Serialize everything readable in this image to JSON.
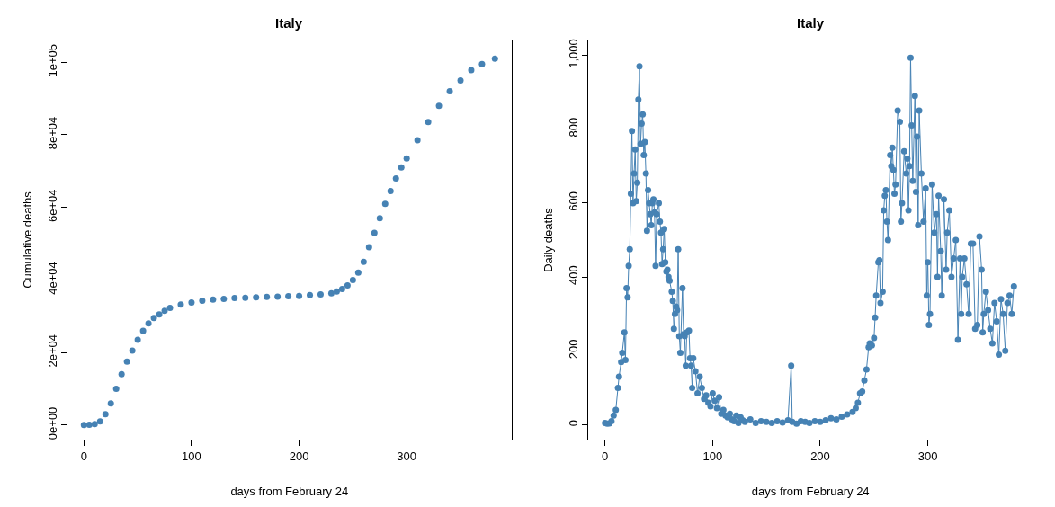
{
  "chart_data": [
    {
      "type": "scatter",
      "title": "Italy",
      "xlabel": "days from February 24",
      "ylabel": "Cumulative deaths",
      "marker": "circle",
      "color": "#4682b4",
      "x": [
        0,
        5,
        10,
        15,
        20,
        25,
        30,
        35,
        40,
        45,
        50,
        55,
        60,
        65,
        70,
        75,
        80,
        90,
        100,
        110,
        120,
        130,
        140,
        150,
        160,
        170,
        180,
        190,
        200,
        210,
        220,
        230,
        235,
        240,
        245,
        250,
        255,
        260,
        265,
        270,
        275,
        280,
        285,
        290,
        295,
        300,
        310,
        320,
        330,
        340,
        350,
        360,
        370,
        382
      ],
      "values": [
        0,
        100,
        300,
        1000,
        3000,
        6000,
        10000,
        14000,
        17500,
        20500,
        23500,
        26000,
        28000,
        29500,
        30500,
        31500,
        32300,
        33200,
        33800,
        34300,
        34600,
        34800,
        35000,
        35100,
        35200,
        35300,
        35400,
        35500,
        35600,
        35800,
        36000,
        36300,
        36800,
        37500,
        38500,
        40000,
        42000,
        45000,
        49000,
        53000,
        57000,
        61000,
        64500,
        68000,
        71000,
        73500,
        78500,
        83500,
        88000,
        92000,
        95000,
        97800,
        99500,
        101000
      ],
      "xlim": [
        -15.3,
        397.3
      ],
      "xticks": [
        0,
        100,
        200,
        300
      ],
      "ylim": [
        -4000,
        106000
      ],
      "yticks": [
        {
          "value": 0,
          "label": "0e+00"
        },
        {
          "value": 20000,
          "label": "2e+04"
        },
        {
          "value": 40000,
          "label": "4e+04"
        },
        {
          "value": 60000,
          "label": "6e+04"
        },
        {
          "value": 80000,
          "label": "8e+04"
        },
        {
          "value": 100000,
          "label": "1e+05"
        }
      ]
    },
    {
      "type": "line",
      "title": "Italy",
      "xlabel": "days from February 24",
      "ylabel": "Daily deaths",
      "marker": "circle",
      "color": "#4682b4",
      "x": [
        0,
        2,
        4,
        6,
        8,
        10,
        12,
        13,
        15,
        16,
        18,
        19,
        20,
        21,
        22,
        23,
        24,
        25,
        26,
        27,
        28,
        29,
        30,
        31,
        32,
        33,
        34,
        35,
        36,
        37,
        38,
        39,
        40,
        41,
        42,
        43,
        44,
        45,
        46,
        47,
        48,
        50,
        51,
        52,
        53,
        54,
        55,
        56,
        57,
        58,
        59,
        60,
        62,
        63,
        64,
        65,
        66,
        67,
        68,
        69,
        70,
        72,
        73,
        74,
        75,
        76,
        78,
        79,
        80,
        81,
        82,
        84,
        86,
        88,
        90,
        92,
        94,
        96,
        98,
        100,
        102,
        104,
        106,
        108,
        110,
        112,
        114,
        116,
        118,
        120,
        122,
        124,
        126,
        128,
        130,
        135,
        140,
        145,
        150,
        155,
        160,
        165,
        170,
        173,
        174,
        178,
        182,
        186,
        190,
        195,
        200,
        205,
        210,
        215,
        220,
        225,
        230,
        233,
        235,
        237,
        239,
        241,
        243,
        245,
        246,
        248,
        250,
        251,
        252,
        254,
        255,
        256,
        258,
        259,
        260,
        261,
        262,
        263,
        265,
        266,
        267,
        268,
        269,
        270,
        272,
        274,
        275,
        276,
        278,
        280,
        281,
        282,
        283,
        284,
        285,
        286,
        288,
        289,
        290,
        291,
        292,
        294,
        296,
        298,
        299,
        300,
        301,
        302,
        304,
        306,
        308,
        309,
        310,
        312,
        313,
        315,
        317,
        318,
        320,
        322,
        324,
        326,
        328,
        330,
        331,
        332,
        334,
        336,
        338,
        340,
        342,
        344,
        346,
        348,
        350,
        351,
        352,
        354,
        356,
        358,
        360,
        362,
        364,
        366,
        368,
        370,
        372,
        374,
        376,
        378,
        380
      ],
      "values": [
        5,
        3,
        4,
        10,
        25,
        40,
        100,
        130,
        170,
        195,
        250,
        175,
        370,
        345,
        430,
        475,
        625,
        795,
        600,
        680,
        745,
        605,
        655,
        880,
        970,
        760,
        815,
        840,
        730,
        765,
        680,
        525,
        635,
        600,
        570,
        540,
        600,
        610,
        575,
        430,
        570,
        600,
        550,
        520,
        435,
        475,
        530,
        440,
        415,
        420,
        400,
        390,
        360,
        335,
        260,
        300,
        320,
        310,
        475,
        240,
        195,
        370,
        245,
        240,
        160,
        250,
        255,
        180,
        160,
        100,
        180,
        145,
        85,
        130,
        100,
        70,
        80,
        60,
        50,
        85,
        65,
        45,
        75,
        30,
        40,
        25,
        20,
        30,
        15,
        10,
        25,
        5,
        20,
        12,
        8,
        15,
        5,
        10,
        8,
        5,
        10,
        6,
        12,
        160,
        8,
        3,
        10,
        8,
        5,
        10,
        8,
        12,
        18,
        15,
        22,
        28,
        35,
        45,
        60,
        85,
        90,
        120,
        150,
        210,
        220,
        215,
        235,
        290,
        350,
        440,
        445,
        330,
        360,
        580,
        620,
        635,
        550,
        500,
        730,
        700,
        750,
        690,
        625,
        650,
        850,
        820,
        550,
        600,
        740,
        680,
        720,
        580,
        700,
        993,
        810,
        660,
        890,
        630,
        780,
        540,
        850,
        680,
        550,
        640,
        350,
        440,
        270,
        300,
        650,
        520,
        570,
        400,
        620,
        470,
        350,
        610,
        420,
        520,
        580,
        400,
        450,
        500,
        230,
        450,
        300,
        400,
        450,
        380,
        300,
        490,
        490,
        260,
        270,
        510,
        420,
        250,
        300,
        360,
        310,
        260,
        220,
        330,
        280,
        190,
        340,
        300,
        200,
        330,
        350,
        300,
        375
      ],
      "xlim": [
        -15.3,
        397.3
      ],
      "xticks": [
        0,
        100,
        200,
        300
      ],
      "ylim": [
        -40,
        1040
      ],
      "yticks": [
        0,
        200,
        400,
        600,
        800,
        {
          "value": 1000,
          "label": "1,000"
        }
      ]
    }
  ]
}
